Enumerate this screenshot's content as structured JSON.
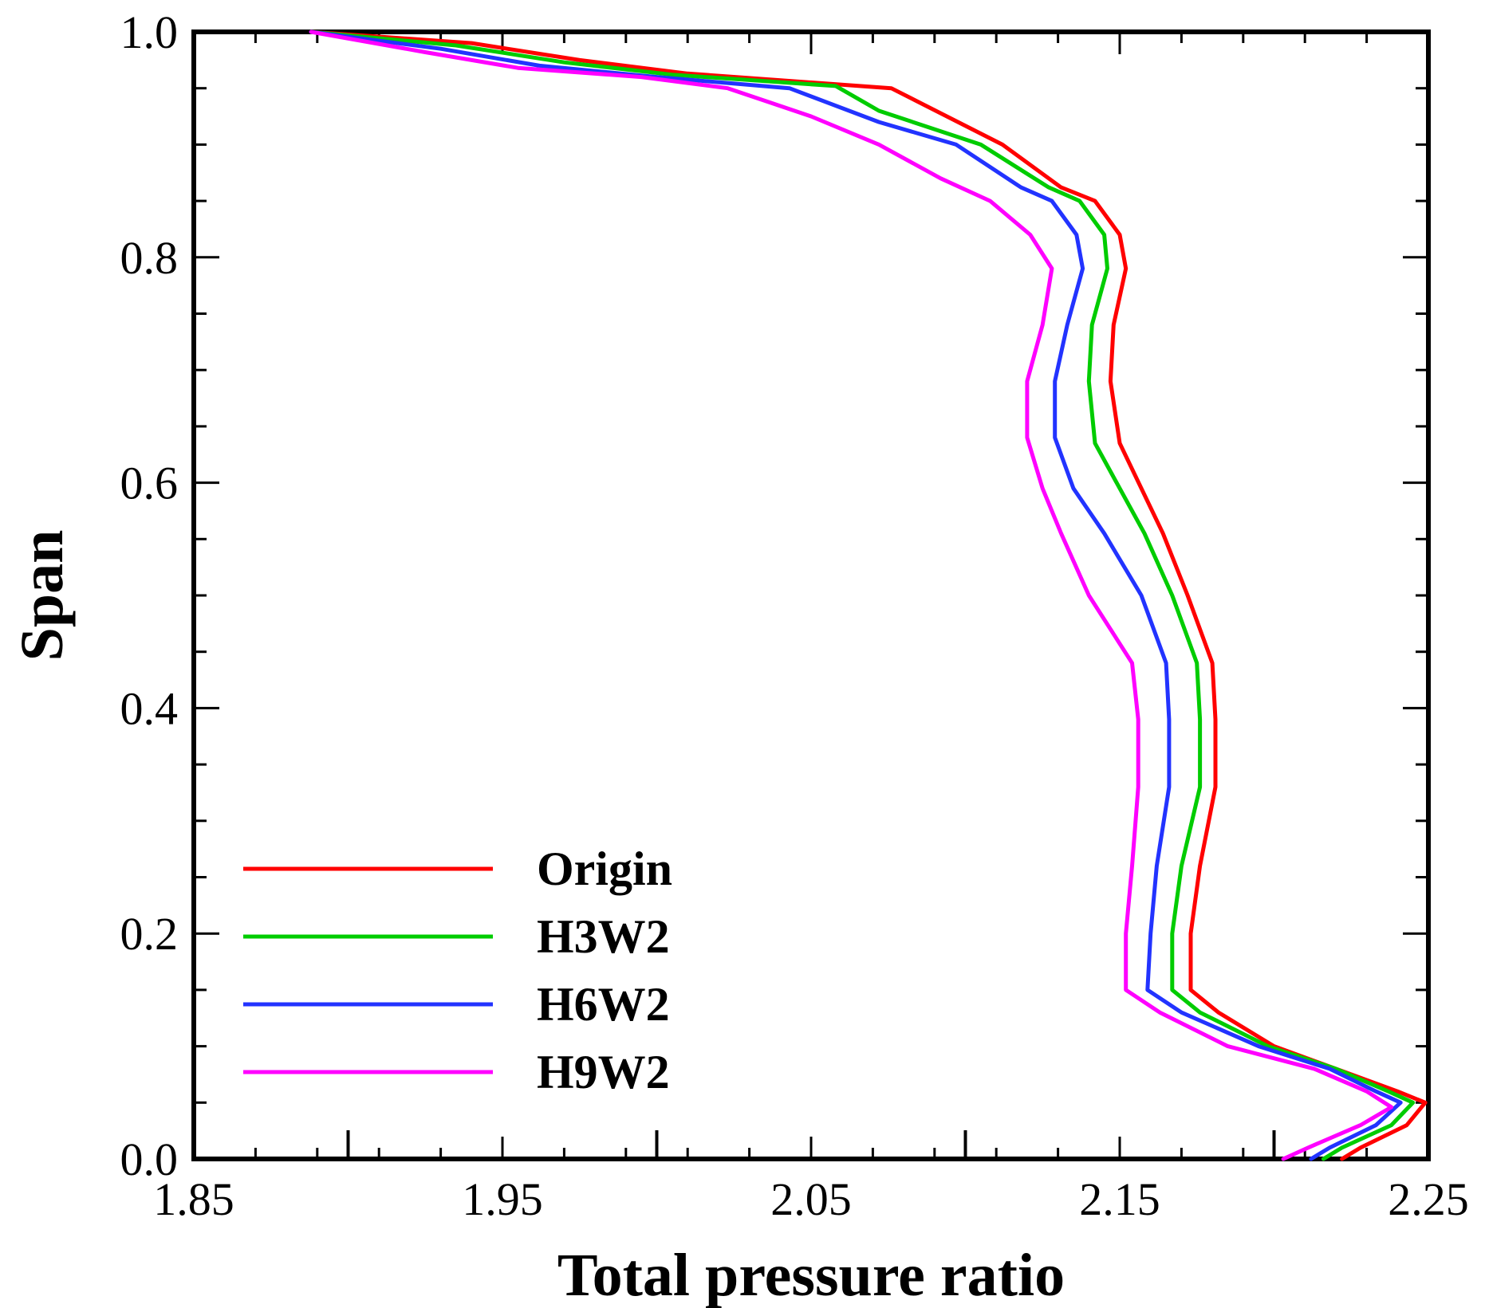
{
  "chart_data": {
    "type": "line",
    "title": "",
    "xlabel": "Total pressure ratio",
    "ylabel": "Span",
    "xlim": [
      1.85,
      2.25
    ],
    "ylim": [
      0.0,
      1.0
    ],
    "grid": false,
    "legend_position": "bottom-left",
    "x_ticks": [
      "1.85",
      "1.95",
      "2.05",
      "2.15",
      "2.25"
    ],
    "y_ticks": [
      "0.0",
      "0.2",
      "0.4",
      "0.6",
      "0.8",
      "1.0"
    ],
    "series": [
      {
        "name": "Origin",
        "color": "#ff0000",
        "points": [
          [
            1.888,
            1.0
          ],
          [
            1.94,
            0.99
          ],
          [
            1.975,
            0.975
          ],
          [
            2.01,
            0.963
          ],
          [
            2.076,
            0.95
          ],
          [
            2.112,
            0.9
          ],
          [
            2.131,
            0.862
          ],
          [
            2.142,
            0.85
          ],
          [
            2.15,
            0.82
          ],
          [
            2.152,
            0.79
          ],
          [
            2.148,
            0.74
          ],
          [
            2.147,
            0.69
          ],
          [
            2.15,
            0.635
          ],
          [
            2.157,
            0.595
          ],
          [
            2.164,
            0.555
          ],
          [
            2.172,
            0.5
          ],
          [
            2.18,
            0.44
          ],
          [
            2.181,
            0.39
          ],
          [
            2.181,
            0.33
          ],
          [
            2.176,
            0.26
          ],
          [
            2.173,
            0.2
          ],
          [
            2.173,
            0.15
          ],
          [
            2.182,
            0.13
          ],
          [
            2.2,
            0.1
          ],
          [
            2.22,
            0.08
          ],
          [
            2.24,
            0.06
          ],
          [
            2.249,
            0.05
          ],
          [
            2.243,
            0.03
          ],
          [
            2.228,
            0.01
          ],
          [
            2.222,
            0.0
          ]
        ]
      },
      {
        "name": "H3W2",
        "color": "#00cc00",
        "points": [
          [
            1.888,
            1.0
          ],
          [
            1.935,
            0.988
          ],
          [
            1.97,
            0.973
          ],
          [
            2.005,
            0.962
          ],
          [
            2.058,
            0.952
          ],
          [
            2.072,
            0.93
          ],
          [
            2.105,
            0.9
          ],
          [
            2.127,
            0.862
          ],
          [
            2.137,
            0.85
          ],
          [
            2.145,
            0.82
          ],
          [
            2.146,
            0.79
          ],
          [
            2.141,
            0.74
          ],
          [
            2.14,
            0.69
          ],
          [
            2.142,
            0.635
          ],
          [
            2.15,
            0.595
          ],
          [
            2.158,
            0.555
          ],
          [
            2.167,
            0.5
          ],
          [
            2.175,
            0.44
          ],
          [
            2.176,
            0.39
          ],
          [
            2.176,
            0.33
          ],
          [
            2.17,
            0.26
          ],
          [
            2.167,
            0.2
          ],
          [
            2.167,
            0.15
          ],
          [
            2.176,
            0.13
          ],
          [
            2.198,
            0.1
          ],
          [
            2.22,
            0.08
          ],
          [
            2.237,
            0.06
          ],
          [
            2.245,
            0.05
          ],
          [
            2.238,
            0.03
          ],
          [
            2.222,
            0.01
          ],
          [
            2.216,
            0.0
          ]
        ]
      },
      {
        "name": "H6W2",
        "color": "#2233ff",
        "points": [
          [
            1.888,
            1.0
          ],
          [
            1.93,
            0.985
          ],
          [
            1.962,
            0.97
          ],
          [
            2.0,
            0.96
          ],
          [
            2.043,
            0.95
          ],
          [
            2.072,
            0.92
          ],
          [
            2.097,
            0.9
          ],
          [
            2.118,
            0.862
          ],
          [
            2.128,
            0.85
          ],
          [
            2.136,
            0.82
          ],
          [
            2.138,
            0.79
          ],
          [
            2.133,
            0.74
          ],
          [
            2.129,
            0.69
          ],
          [
            2.129,
            0.64
          ],
          [
            2.135,
            0.595
          ],
          [
            2.145,
            0.555
          ],
          [
            2.157,
            0.5
          ],
          [
            2.165,
            0.44
          ],
          [
            2.166,
            0.39
          ],
          [
            2.166,
            0.33
          ],
          [
            2.162,
            0.26
          ],
          [
            2.16,
            0.2
          ],
          [
            2.159,
            0.15
          ],
          [
            2.17,
            0.13
          ],
          [
            2.195,
            0.1
          ],
          [
            2.218,
            0.08
          ],
          [
            2.233,
            0.06
          ],
          [
            2.241,
            0.05
          ],
          [
            2.233,
            0.03
          ],
          [
            2.218,
            0.01
          ],
          [
            2.212,
            0.0
          ]
        ]
      },
      {
        "name": "H9W2",
        "color": "#ff00ff",
        "points": [
          [
            1.888,
            1.0
          ],
          [
            1.925,
            0.982
          ],
          [
            1.955,
            0.968
          ],
          [
            1.995,
            0.96
          ],
          [
            2.023,
            0.95
          ],
          [
            2.05,
            0.925
          ],
          [
            2.072,
            0.9
          ],
          [
            2.092,
            0.87
          ],
          [
            2.108,
            0.85
          ],
          [
            2.121,
            0.82
          ],
          [
            2.128,
            0.79
          ],
          [
            2.125,
            0.74
          ],
          [
            2.12,
            0.69
          ],
          [
            2.12,
            0.64
          ],
          [
            2.125,
            0.595
          ],
          [
            2.131,
            0.555
          ],
          [
            2.14,
            0.5
          ],
          [
            2.154,
            0.44
          ],
          [
            2.156,
            0.39
          ],
          [
            2.156,
            0.33
          ],
          [
            2.154,
            0.26
          ],
          [
            2.152,
            0.2
          ],
          [
            2.152,
            0.15
          ],
          [
            2.163,
            0.13
          ],
          [
            2.185,
            0.1
          ],
          [
            2.213,
            0.08
          ],
          [
            2.23,
            0.06
          ],
          [
            2.238,
            0.046
          ],
          [
            2.228,
            0.03
          ],
          [
            2.211,
            0.01
          ],
          [
            2.203,
            0.0
          ]
        ]
      }
    ]
  }
}
